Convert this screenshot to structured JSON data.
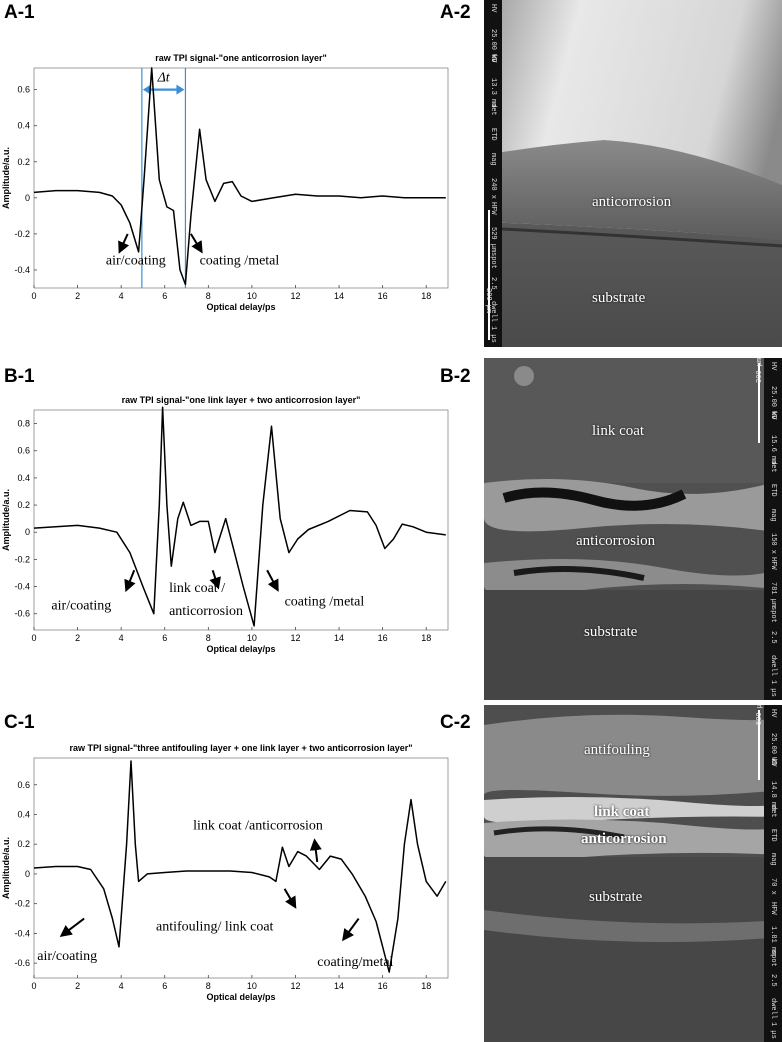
{
  "labels": {
    "a1": "A-1",
    "a2": "A-2",
    "b1": "B-1",
    "b2": "B-2",
    "c1": "C-1",
    "c2": "C-2"
  },
  "chart_data": [
    {
      "type": "line",
      "id": "A",
      "title": "raw TPI signal-\"one anticorrosion layer\"",
      "xlabel": "Optical delay/ps",
      "ylabel": "Amplitude/a.u.",
      "xlim": [
        0,
        19
      ],
      "ylim": [
        -0.5,
        0.72
      ],
      "xticks": [
        0,
        2,
        4,
        6,
        8,
        10,
        12,
        14,
        16,
        18
      ],
      "yticks": [
        -0.4,
        -0.2,
        0,
        0.2,
        0.4,
        0.6
      ],
      "points": [
        [
          0,
          0.03
        ],
        [
          1,
          0.04
        ],
        [
          2,
          0.04
        ],
        [
          3,
          0.03
        ],
        [
          3.6,
          0.01
        ],
        [
          4,
          -0.04
        ],
        [
          4.4,
          -0.14
        ],
        [
          4.8,
          -0.3
        ],
        [
          5.05,
          0.1
        ],
        [
          5.4,
          0.72
        ],
        [
          5.75,
          0.1
        ],
        [
          6.1,
          -0.05
        ],
        [
          6.4,
          -0.07
        ],
        [
          6.7,
          -0.4
        ],
        [
          6.95,
          -0.48
        ],
        [
          7.2,
          -0.1
        ],
        [
          7.6,
          0.38
        ],
        [
          7.9,
          0.1
        ],
        [
          8.3,
          -0.02
        ],
        [
          8.7,
          0.08
        ],
        [
          9.1,
          0.09
        ],
        [
          9.5,
          0.01
        ],
        [
          10,
          -0.02
        ],
        [
          11,
          0.0
        ],
        [
          12,
          0.02
        ],
        [
          13,
          0.01
        ],
        [
          14,
          0.01
        ],
        [
          15,
          0.0
        ],
        [
          16,
          0.01
        ],
        [
          17,
          0.0
        ],
        [
          18,
          0.0
        ],
        [
          18.9,
          0.0
        ]
      ],
      "vlines": [
        4.95,
        6.95
      ],
      "delta_label": "Δt",
      "annotations": [
        {
          "text": "air/coating",
          "x": 3.3,
          "y": -0.37,
          "arrow_from": [
            4.3,
            -0.2
          ],
          "arrow_to": [
            4.0,
            -0.28
          ]
        },
        {
          "text": "coating /metal",
          "x": 7.6,
          "y": -0.37,
          "arrow_from": [
            7.2,
            -0.2
          ],
          "arrow_to": [
            7.6,
            -0.28
          ]
        }
      ]
    },
    {
      "type": "line",
      "id": "B",
      "title": "raw TPI signal-\"one link layer + two anticorrosion layer\"",
      "xlabel": "Optical delay/ps",
      "ylabel": "Amplitude/a.u.",
      "xlim": [
        0,
        19
      ],
      "ylim": [
        -0.72,
        0.9
      ],
      "xticks": [
        0,
        2,
        4,
        6,
        8,
        10,
        12,
        14,
        16,
        18
      ],
      "yticks": [
        -0.6,
        -0.4,
        -0.2,
        0,
        0.2,
        0.4,
        0.6,
        0.8
      ],
      "points": [
        [
          0,
          0.03
        ],
        [
          1,
          0.04
        ],
        [
          2,
          0.05
        ],
        [
          3,
          0.03
        ],
        [
          3.8,
          0.0
        ],
        [
          4.4,
          -0.15
        ],
        [
          5,
          -0.4
        ],
        [
          5.5,
          -0.6
        ],
        [
          5.75,
          0.2
        ],
        [
          5.9,
          0.92
        ],
        [
          6.1,
          0.2
        ],
        [
          6.3,
          -0.25
        ],
        [
          6.6,
          0.1
        ],
        [
          6.85,
          0.22
        ],
        [
          7.2,
          0.05
        ],
        [
          7.6,
          0.08
        ],
        [
          8,
          0.08
        ],
        [
          8.3,
          -0.15
        ],
        [
          8.5,
          -0.05
        ],
        [
          8.8,
          0.1
        ],
        [
          9.2,
          -0.15
        ],
        [
          9.6,
          -0.4
        ],
        [
          10.1,
          -0.69
        ],
        [
          10.5,
          0.2
        ],
        [
          10.9,
          0.78
        ],
        [
          11.3,
          0.1
        ],
        [
          11.7,
          -0.15
        ],
        [
          12.1,
          -0.05
        ],
        [
          12.6,
          0.02
        ],
        [
          13.5,
          0.08
        ],
        [
          14.5,
          0.16
        ],
        [
          15.3,
          0.15
        ],
        [
          15.7,
          0.05
        ],
        [
          16.1,
          -0.12
        ],
        [
          16.5,
          -0.05
        ],
        [
          16.9,
          0.06
        ],
        [
          17.4,
          0.04
        ],
        [
          18,
          0.0
        ],
        [
          18.9,
          -0.02
        ]
      ],
      "annotations": [
        {
          "text": "air/coating",
          "x": 0.8,
          "y": -0.57,
          "arrow_from": [
            4.6,
            -0.28
          ],
          "arrow_to": [
            4.3,
            -0.4
          ]
        },
        {
          "text": "link coat /",
          "x": 6.2,
          "y": -0.44,
          "arrow_from": [
            8.2,
            -0.28
          ],
          "arrow_to": [
            8.4,
            -0.38
          ]
        },
        {
          "text": "anticorrosion",
          "x": 6.2,
          "y": -0.61,
          "arrow_from": null,
          "arrow_to": null
        },
        {
          "text": "coating /metal",
          "x": 11.5,
          "y": -0.54,
          "arrow_from": [
            10.7,
            -0.28
          ],
          "arrow_to": [
            11.1,
            -0.4
          ]
        }
      ]
    },
    {
      "type": "line",
      "id": "C",
      "title": "raw TPI signal-\"three antifouling layer + one link layer + two anticorrosion layer\"",
      "xlabel": "Optical delay/ps",
      "ylabel": "Amplitude/a.u.",
      "xlim": [
        0,
        19
      ],
      "ylim": [
        -0.7,
        0.78
      ],
      "xticks": [
        0,
        2,
        4,
        6,
        8,
        10,
        12,
        14,
        16,
        18
      ],
      "yticks": [
        -0.6,
        -0.4,
        -0.2,
        0,
        0.2,
        0.4,
        0.6
      ],
      "points": [
        [
          0,
          0.04
        ],
        [
          1,
          0.05
        ],
        [
          2,
          0.05
        ],
        [
          2.6,
          0.03
        ],
        [
          3.2,
          -0.1
        ],
        [
          3.6,
          -0.3
        ],
        [
          3.9,
          -0.49
        ],
        [
          4.25,
          0.2
        ],
        [
          4.45,
          0.76
        ],
        [
          4.65,
          0.2
        ],
        [
          4.8,
          -0.05
        ],
        [
          5.2,
          0.0
        ],
        [
          6,
          0.01
        ],
        [
          7,
          0.02
        ],
        [
          8,
          0.02
        ],
        [
          9,
          0.02
        ],
        [
          10,
          0.01
        ],
        [
          10.8,
          -0.02
        ],
        [
          11.1,
          -0.05
        ],
        [
          11.4,
          0.18
        ],
        [
          11.7,
          0.05
        ],
        [
          12.1,
          0.15
        ],
        [
          12.5,
          0.12
        ],
        [
          13.1,
          0.03
        ],
        [
          13.6,
          0.12
        ],
        [
          14.1,
          0.1
        ],
        [
          14.6,
          0.0
        ],
        [
          15.2,
          -0.15
        ],
        [
          15.7,
          -0.32
        ],
        [
          16.3,
          -0.66
        ],
        [
          16.7,
          -0.3
        ],
        [
          17,
          0.2
        ],
        [
          17.3,
          0.5
        ],
        [
          17.6,
          0.2
        ],
        [
          18,
          -0.05
        ],
        [
          18.5,
          -0.15
        ],
        [
          18.9,
          -0.05
        ]
      ],
      "annotations": [
        {
          "text": "air/coating",
          "x": 0.15,
          "y": -0.58,
          "arrow_from": [
            2.3,
            -0.3
          ],
          "arrow_to": [
            1.4,
            -0.4
          ]
        },
        {
          "text": "antifouling/ link coat",
          "x": 5.6,
          "y": -0.38,
          "arrow_from": [
            11.5,
            -0.1
          ],
          "arrow_to": [
            11.9,
            -0.2
          ]
        },
        {
          "text": "link coat /anticorrosion",
          "x": 7.3,
          "y": 0.3,
          "arrow_from": [
            13.0,
            0.08
          ],
          "arrow_to": [
            12.9,
            0.2
          ]
        },
        {
          "text": "coating/metal",
          "x": 13.0,
          "y": -0.62,
          "arrow_from": [
            14.9,
            -0.3
          ],
          "arrow_to": [
            14.3,
            -0.42
          ]
        }
      ]
    }
  ],
  "sem": {
    "a": {
      "labels": [
        "anticorrosion",
        "substrate"
      ],
      "databar": [
        "HV",
        "25.00 kV",
        "WD",
        "13.3 mm",
        "det",
        "ETD",
        "mag",
        "240 x",
        "HFW",
        "529 μm",
        "spot",
        "2.5",
        "dwell",
        "1 μs"
      ],
      "scale": "200 μm"
    },
    "b": {
      "labels": [
        "link coat",
        "anticorrosion",
        "substrate"
      ],
      "databar": [
        "HV",
        "25.00 kV",
        "WD",
        "15.6 mm",
        "det",
        "ETD",
        "mag",
        "150 x",
        "HFW",
        "781 μm",
        "spot",
        "2.5",
        "dwell",
        "1 μs"
      ],
      "scale": "300 μm"
    },
    "c": {
      "labels": [
        "antifouling",
        "link coat",
        "anticorrosion",
        "substrate"
      ],
      "databar": [
        "HV",
        "25.00 kV",
        "WD",
        "14.8 mm",
        "det",
        "ETD",
        "mag",
        "70 x",
        "HFW",
        "1.81 mm",
        "spot",
        "2.5",
        "dwell",
        "1 μs"
      ],
      "scale": "500 μm"
    }
  }
}
